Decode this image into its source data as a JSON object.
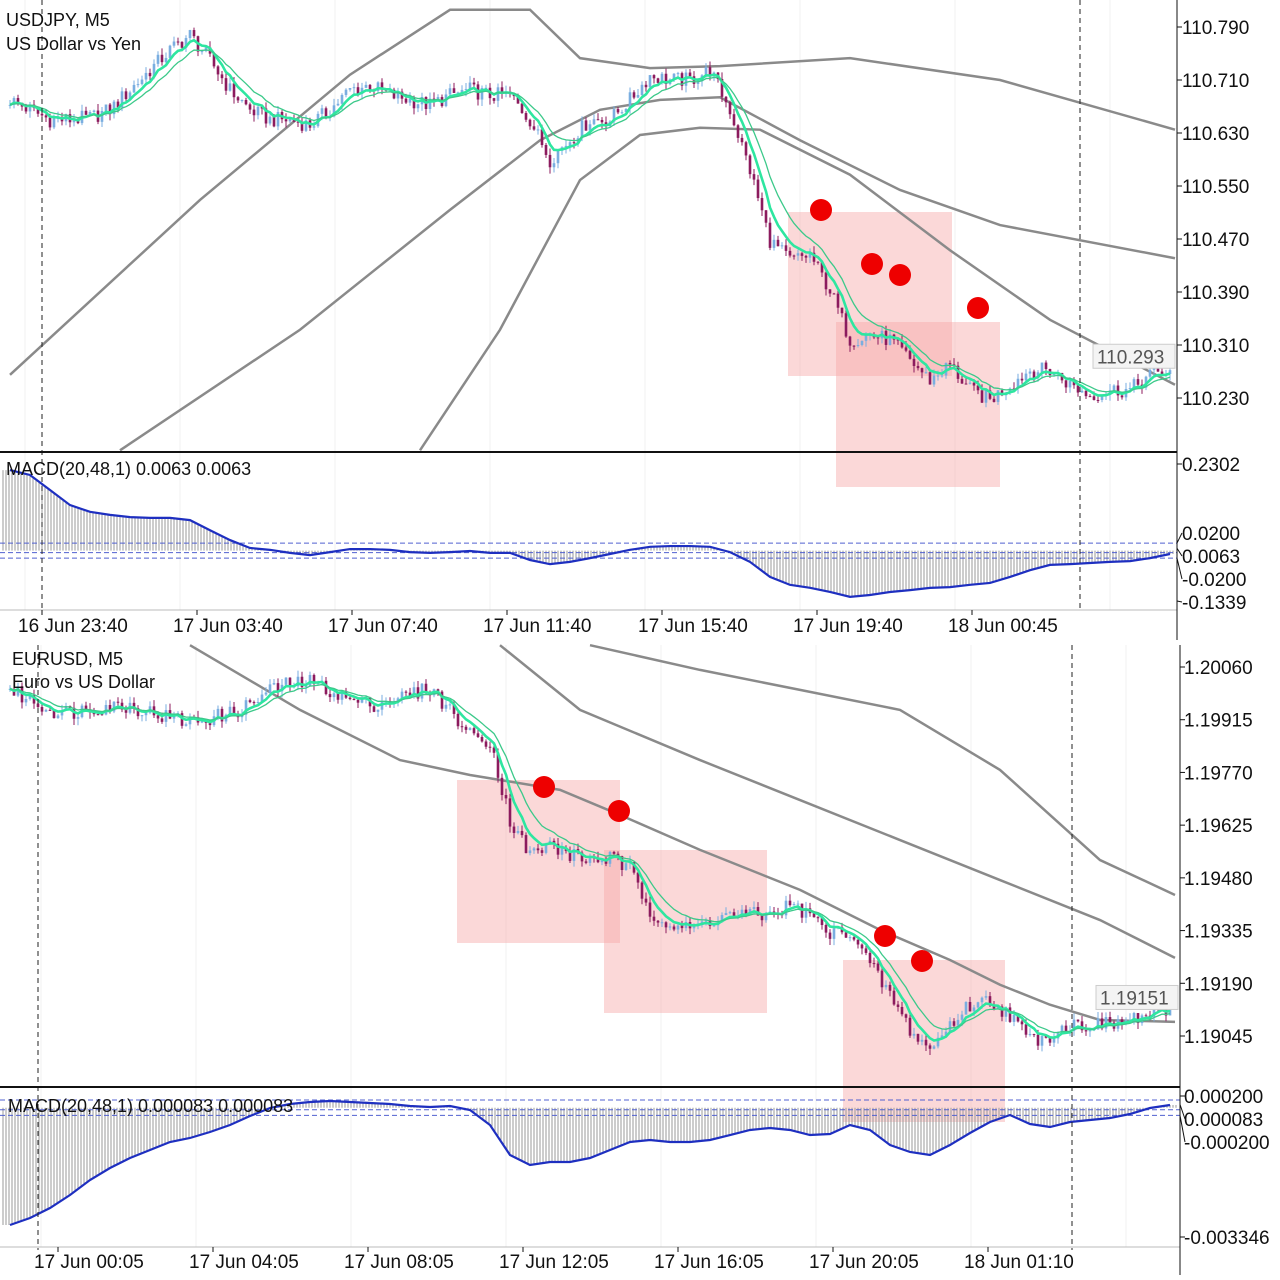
{
  "charts": [
    {
      "symbol_title": "USDJPY, M5",
      "description": "US Dollar vs Yen",
      "macd_label": "MACD(20,48,1) 0.0063 0.0063",
      "price_ticks": [
        "110.790",
        "110.710",
        "110.630",
        "110.550",
        "110.470",
        "110.390",
        "110.310",
        "110.230"
      ],
      "current_price": "110.293",
      "macd_ticks": [
        "0.2302",
        "0.0200",
        "0.0063",
        "-0.0200",
        "-0.1339"
      ],
      "time_labels": [
        "16 Jun 23:40",
        "17 Jun 03:40",
        "17 Jun 07:40",
        "17 Jun 11:40",
        "17 Jun 15:40",
        "17 Jun 19:40",
        "18 Jun 00:45"
      ]
    },
    {
      "symbol_title": "EURUSD, M5",
      "description": "Euro vs US Dollar",
      "macd_label": "MACD(20,48,1) 0.000083 0.000083",
      "price_ticks": [
        "1.20060",
        "1.19915",
        "1.19770",
        "1.19625",
        "1.19480",
        "1.19335",
        "1.19190",
        "1.19045"
      ],
      "current_price": "1.19151",
      "macd_ticks": [
        "0.000200",
        "0.000083",
        "-0.000200",
        "-0.003346"
      ],
      "time_labels": [
        "17 Jun 00:05",
        "17 Jun 04:05",
        "17 Jun 08:05",
        "17 Jun 12:05",
        "17 Jun 16:05",
        "17 Jun 20:05",
        "18 Jun 01:10"
      ]
    }
  ],
  "chart_data": [
    {
      "type": "candlestick",
      "title": "USDJPY, M5",
      "ylim": [
        110.15,
        110.83
      ],
      "closes": [
        110.68,
        110.665,
        110.65,
        110.65,
        110.653,
        110.665,
        110.695,
        110.725,
        110.755,
        110.778,
        110.74,
        110.695,
        110.665,
        110.65,
        110.65,
        110.642,
        110.665,
        110.695,
        110.702,
        110.687,
        110.68,
        110.672,
        110.687,
        110.695,
        110.687,
        110.687,
        110.65,
        110.59,
        110.62,
        110.65,
        110.65,
        110.68,
        110.717,
        110.71,
        110.71,
        110.725,
        110.665,
        110.574,
        110.468,
        110.438,
        110.446,
        110.393,
        110.318,
        110.325,
        110.318,
        110.287,
        110.257,
        110.28,
        110.242,
        110.227,
        110.25,
        110.272,
        110.272,
        110.25,
        110.234,
        110.242,
        110.242,
        110.265,
        110.272
      ],
      "bands": [
        [
          [
            0,
            110.265
          ],
          [
            9.5,
            110.529
          ],
          [
            17,
            110.718
          ],
          [
            22,
            110.816
          ],
          [
            26,
            110.816
          ],
          [
            28.5,
            110.743
          ],
          [
            32,
            110.728
          ],
          [
            35.5,
            110.731
          ],
          [
            42,
            110.743
          ],
          [
            49.5,
            110.71
          ],
          [
            58.25,
            110.635
          ]
        ],
        [
          [
            5.5,
            110.151
          ],
          [
            14.5,
            110.333
          ],
          [
            22,
            110.514
          ],
          [
            26.5,
            110.619
          ],
          [
            29.5,
            110.665
          ],
          [
            32.5,
            110.68
          ],
          [
            35.5,
            110.684
          ],
          [
            39.5,
            110.619
          ],
          [
            44.5,
            110.544
          ],
          [
            49.5,
            110.491
          ],
          [
            58.25,
            110.441
          ]
        ],
        [
          [
            20.5,
            110.151
          ],
          [
            24.5,
            110.333
          ],
          [
            28.5,
            110.559
          ],
          [
            31.5,
            110.627
          ],
          [
            34.5,
            110.638
          ],
          [
            37.5,
            110.635
          ],
          [
            42,
            110.567
          ],
          [
            47,
            110.453
          ],
          [
            52,
            110.348
          ],
          [
            58.25,
            110.25
          ]
        ]
      ],
      "macd": [
        0.214,
        0.201,
        0.161,
        0.121,
        0.103,
        0.095,
        0.089,
        0.087,
        0.087,
        0.081,
        0.054,
        0.028,
        0.007,
        0.002,
        -0.006,
        -0.012,
        -0.004,
        0.004,
        0.004,
        0.002,
        -0.004,
        -0.006,
        -0.004,
        -0.001,
        -0.006,
        -0.006,
        -0.025,
        -0.036,
        -0.03,
        -0.02,
        -0.009,
        0.002,
        0.01,
        0.012,
        0.012,
        0.01,
        -0.004,
        -0.03,
        -0.07,
        -0.091,
        -0.099,
        -0.11,
        -0.123,
        -0.118,
        -0.11,
        -0.105,
        -0.099,
        -0.097,
        -0.091,
        -0.086,
        -0.07,
        -0.052,
        -0.038,
        -0.036,
        -0.033,
        -0.03,
        -0.028,
        -0.02,
        -0.009
      ],
      "macd_levels": [
        0.02,
        -0.02
      ],
      "macd_ylim": [
        -0.1339,
        0.2302
      ]
    },
    {
      "type": "candlestick",
      "title": "EURUSD, M5",
      "ylim": [
        1.1898,
        1.2012
      ],
      "closes": [
        1.19997,
        1.19969,
        1.19942,
        1.19936,
        1.19947,
        1.19953,
        1.19953,
        1.19936,
        1.1992,
        1.19909,
        1.1992,
        1.19931,
        1.19956,
        1.19997,
        1.20013,
        1.20019,
        1.19997,
        1.19969,
        1.19956,
        1.19969,
        1.19983,
        1.20002,
        1.19942,
        1.19873,
        1.19859,
        1.19639,
        1.19543,
        1.19571,
        1.19543,
        1.19529,
        1.19535,
        1.19502,
        1.19392,
        1.19351,
        1.19337,
        1.19364,
        1.19378,
        1.19378,
        1.19378,
        1.19406,
        1.19378,
        1.19323,
        1.19337,
        1.19241,
        1.19158,
        1.19062,
        1.19007,
        1.19076,
        1.19131,
        1.19144,
        1.19103,
        1.19034,
        1.19048,
        1.19076,
        1.19076,
        1.19076,
        1.19089,
        1.19103,
        1.19117
      ],
      "bands": [
        [
          [
            9,
            1.2012
          ],
          [
            14.5,
            1.19942
          ],
          [
            19.5,
            1.19804
          ],
          [
            23,
            1.19763
          ],
          [
            27.5,
            1.19722
          ],
          [
            30.5,
            1.19653
          ],
          [
            34.5,
            1.19557
          ],
          [
            39.5,
            1.19447
          ],
          [
            43.5,
            1.19337
          ],
          [
            47,
            1.19254
          ],
          [
            49.5,
            1.19186
          ],
          [
            52,
            1.19131
          ],
          [
            54.5,
            1.19089
          ],
          [
            58.25,
            1.19084
          ]
        ],
        [
          [
            24.5,
            1.2012
          ],
          [
            28.5,
            1.19942
          ],
          [
            34.5,
            1.19804
          ],
          [
            39.5,
            1.19694
          ],
          [
            44.5,
            1.19584
          ],
          [
            49.5,
            1.19474
          ],
          [
            54.5,
            1.19364
          ],
          [
            58.25,
            1.1926
          ]
        ],
        [
          [
            29,
            1.2012
          ],
          [
            34.5,
            1.20052
          ],
          [
            39.5,
            1.19997
          ],
          [
            44.5,
            1.19942
          ],
          [
            49.5,
            1.19777
          ],
          [
            54.5,
            1.19529
          ],
          [
            58.25,
            1.19433
          ]
        ]
      ],
      "macd": [
        -0.003036,
        -0.002855,
        -0.002596,
        -0.002259,
        -0.001871,
        -0.001561,
        -0.001302,
        -0.001095,
        -0.000888,
        -0.000784,
        -0.000629,
        -0.000448,
        -0.000215,
        -8e-06,
        9.6e-05,
        0.000148,
        0.000173,
        0.000148,
        0.000122,
        9.6e-05,
        4.4e-05,
        1.8e-05,
        4.4e-05,
        -6e-05,
        -0.000448,
        -0.001224,
        -0.001483,
        -0.001405,
        -0.001405,
        -0.001302,
        -0.001095,
        -0.000888,
        -0.000836,
        -0.000888,
        -0.000888,
        -0.000836,
        -0.000707,
        -0.000577,
        -0.000525,
        -0.000577,
        -0.000707,
        -0.000681,
        -0.000448,
        -0.000577,
        -0.000965,
        -0.001146,
        -0.001224,
        -0.000965,
        -0.000655,
        -0.00037,
        -0.000189,
        -0.000422,
        -0.0005,
        -0.00037,
        -0.000318,
        -0.000267,
        -0.000163,
        -8e-06,
        7e-05
      ],
      "macd_levels": [
        0.0002,
        -0.0002
      ],
      "macd_ylim": [
        -0.003346,
        0.0002
      ]
    }
  ]
}
